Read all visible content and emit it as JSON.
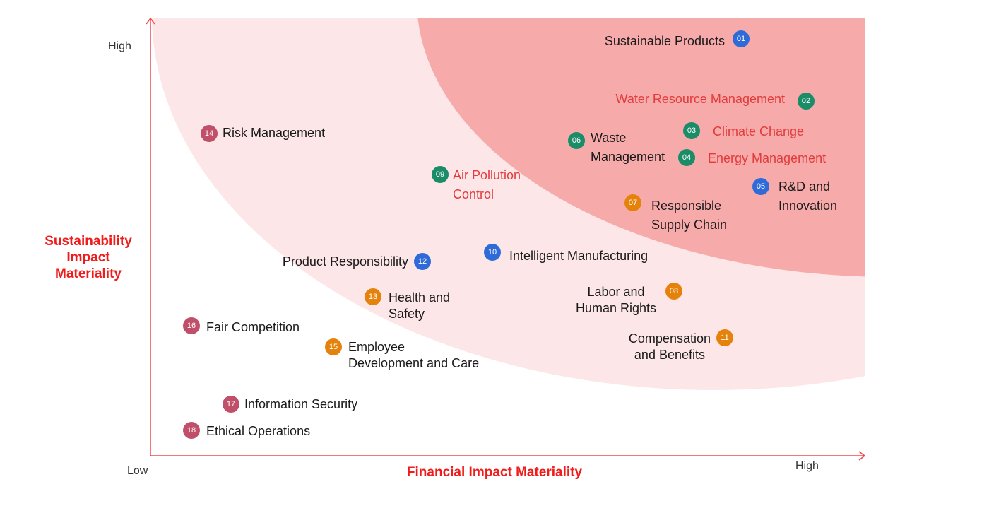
{
  "axes": {
    "y_title": [
      "Sustainability",
      "Impact",
      "Materiality"
    ],
    "x_title": "Financial Impact Materiality",
    "y_high": "High",
    "x_low": "Low",
    "x_high": "High"
  },
  "colors": {
    "axis": "#f04848",
    "high_zone": "#f7aaaa",
    "medium_zone": "#fde6e7",
    "environment": "#1a8c68",
    "product": "#2f6bd8",
    "social": "#e5820c",
    "governance": "#c0506a",
    "highlight_text": "#e23b3b"
  },
  "topics": [
    {
      "num": "01",
      "lines": [
        "Sustainable Products"
      ],
      "category": "product",
      "highlight": false
    },
    {
      "num": "02",
      "lines": [
        "Water Resource Management"
      ],
      "category": "environment",
      "highlight": true
    },
    {
      "num": "03",
      "lines": [
        "Climate Change"
      ],
      "category": "environment",
      "highlight": true
    },
    {
      "num": "04",
      "lines": [
        "Energy Management"
      ],
      "category": "environment",
      "highlight": true
    },
    {
      "num": "05",
      "lines": [
        "R&D and",
        "Innovation"
      ],
      "category": "product",
      "highlight": false
    },
    {
      "num": "06",
      "lines": [
        "Waste",
        "Management"
      ],
      "category": "environment",
      "highlight": false
    },
    {
      "num": "07",
      "lines": [
        "Responsible",
        "Supply Chain"
      ],
      "category": "social",
      "highlight": false
    },
    {
      "num": "08",
      "lines": [
        "Labor and",
        "Human Rights"
      ],
      "category": "social",
      "highlight": false
    },
    {
      "num": "09",
      "lines": [
        "Air Pollution",
        "Control"
      ],
      "category": "environment",
      "highlight": true
    },
    {
      "num": "10",
      "lines": [
        "Intelligent Manufacturing"
      ],
      "category": "product",
      "highlight": false
    },
    {
      "num": "11",
      "lines": [
        "Compensation",
        "and Benefits"
      ],
      "category": "social",
      "highlight": false
    },
    {
      "num": "12",
      "lines": [
        "Product Responsibility"
      ],
      "category": "product",
      "highlight": false
    },
    {
      "num": "13",
      "lines": [
        "Health and",
        "Safety"
      ],
      "category": "social",
      "highlight": false
    },
    {
      "num": "14",
      "lines": [
        "Risk Management"
      ],
      "category": "governance",
      "highlight": false
    },
    {
      "num": "15",
      "lines": [
        "Employee",
        "Development and Care"
      ],
      "category": "social",
      "highlight": false
    },
    {
      "num": "16",
      "lines": [
        "Fair Competition"
      ],
      "category": "governance",
      "highlight": false
    },
    {
      "num": "17",
      "lines": [
        "Information Security"
      ],
      "category": "governance",
      "highlight": false
    },
    {
      "num": "18",
      "lines": [
        "Ethical Operations"
      ],
      "category": "governance",
      "highlight": false
    }
  ]
}
